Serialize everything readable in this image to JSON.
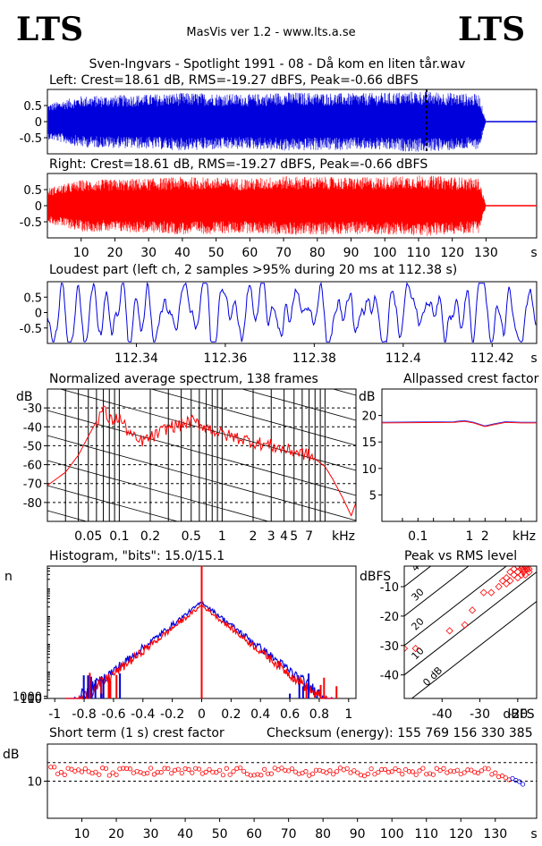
{
  "header": {
    "logo_left": "LTS",
    "logo_right": "LTS",
    "app_title": "MasVis ver 1.2 - www.lts.a.se",
    "file_title": "Sven-Ingvars - Spotlight 1991 - 08 - Då kom en liten tår.wav"
  },
  "colors": {
    "left": "#0000dd",
    "right": "#ff0000",
    "grid": "#000000"
  },
  "chart_data": [
    {
      "id": "left",
      "type": "area",
      "title": "Left: Crest=18.61 dB, RMS=-19.27 dBFS, Peak=-0.66 dBFS",
      "xlabel": "s",
      "xlim": [
        0,
        145
      ],
      "ylim": [
        -1,
        1
      ],
      "yticks": [
        "0.5",
        "0",
        "-0.5"
      ],
      "envelope_x": [
        0,
        10,
        20,
        30,
        40,
        50,
        60,
        70,
        80,
        90,
        100,
        110,
        120,
        128,
        130,
        145
      ],
      "envelope_amp": [
        0.55,
        0.8,
        0.82,
        0.85,
        0.9,
        0.88,
        0.85,
        0.92,
        0.9,
        0.88,
        0.9,
        0.95,
        0.9,
        0.85,
        0.0,
        0.0
      ],
      "marker_s": 112.38
    },
    {
      "id": "right",
      "type": "area",
      "title": "Right: Crest=18.61 dB, RMS=-19.27 dBFS, Peak=-0.66 dBFS",
      "xlabel": "s",
      "xlim": [
        0,
        145
      ],
      "ylim": [
        -1,
        1
      ],
      "yticks": [
        "0.5",
        "0",
        "-0.5"
      ],
      "xticks": [
        "10",
        "20",
        "30",
        "40",
        "50",
        "60",
        "70",
        "80",
        "90",
        "100",
        "110",
        "120",
        "130"
      ],
      "envelope_x": [
        0,
        10,
        20,
        30,
        40,
        50,
        60,
        70,
        80,
        90,
        100,
        110,
        120,
        128,
        130,
        145
      ],
      "envelope_amp": [
        0.55,
        0.8,
        0.82,
        0.85,
        0.9,
        0.88,
        0.85,
        0.92,
        0.9,
        0.88,
        0.9,
        0.95,
        0.9,
        0.85,
        0.0,
        0.0
      ]
    },
    {
      "id": "loudest",
      "type": "line",
      "title": "Loudest part (left  ch, 2 samples >95% during 20 ms at 112.38 s)",
      "xlabel": "s",
      "xlim": [
        112.32,
        112.43
      ],
      "ylim": [
        -1,
        1
      ],
      "yticks": [
        "0.5",
        "0",
        "-0.5"
      ],
      "xticks": [
        "112.34",
        "112.36",
        "112.38",
        "112.4",
        "112.42"
      ]
    },
    {
      "id": "spectrum",
      "type": "line",
      "title": "Normalized average spectrum, 138 frames",
      "ylabel": "dB",
      "xlabel": "kHz",
      "xscale": "log",
      "xlim": [
        0.02,
        20
      ],
      "ylim": [
        -90,
        -20
      ],
      "yticks": [
        "-30",
        "-40",
        "-50",
        "-60",
        "-70",
        "-80"
      ],
      "xticks": [
        "0.05",
        "0.1",
        "0.2",
        "0.5",
        "1",
        "2",
        "3",
        "4",
        "5",
        "7"
      ],
      "x": [
        0.02,
        0.03,
        0.04,
        0.05,
        0.06,
        0.07,
        0.08,
        0.1,
        0.12,
        0.15,
        0.2,
        0.25,
        0.3,
        0.4,
        0.5,
        0.7,
        1,
        1.5,
        2,
        3,
        4,
        5,
        6,
        7,
        8,
        10,
        12,
        15,
        18,
        20
      ],
      "y": [
        -71,
        -64,
        -55,
        -45,
        -37,
        -30,
        -37,
        -35,
        -42,
        -48,
        -46,
        -43,
        -40,
        -39,
        -37,
        -40,
        -44,
        -46,
        -48,
        -50,
        -52,
        -53,
        -54,
        -55,
        -57,
        -61,
        -68,
        -78,
        -87,
        -80
      ]
    },
    {
      "id": "allpassed",
      "type": "line",
      "title": "Allpassed crest factor",
      "ylabel": "dB",
      "xlabel": "kHz",
      "xscale": "log",
      "xlim": [
        0.02,
        20
      ],
      "ylim": [
        0,
        25
      ],
      "yticks": [
        "5",
        "10",
        "15",
        "20"
      ],
      "xticks": [
        "0.1",
        "1",
        "2",
        "kHz"
      ],
      "x": [
        0.02,
        0.5,
        0.8,
        1.2,
        2,
        3,
        5,
        10,
        20
      ],
      "y": [
        18.6,
        18.7,
        18.9,
        18.6,
        17.9,
        18.3,
        18.7,
        18.6,
        18.6
      ]
    },
    {
      "id": "histogram",
      "type": "bar",
      "title": "Histogram, \"bits\": 15.0/15.1",
      "ylabel": "n",
      "yscale": "log",
      "xlim": [
        -1.05,
        1.05
      ],
      "ylim": [
        1,
        60000
      ],
      "yticks": [
        "1000",
        "100",
        "10"
      ],
      "xticks": [
        "-1",
        "-0.8",
        "-0.6",
        "-0.4",
        "-0.2",
        "0",
        "0.2",
        "0.4",
        "0.6",
        "0.8",
        "1"
      ],
      "peak_count_left": 3000,
      "peak_count_right": 2300
    },
    {
      "id": "peak_rms",
      "type": "scatter",
      "title": "Peak vs RMS level",
      "ylabel": "dBFS",
      "xlabel": "dBFS",
      "xlim": [
        -50,
        -15
      ],
      "ylim": [
        -48,
        -3
      ],
      "yticks": [
        "-10",
        "-20",
        "-30",
        "-40"
      ],
      "xticks": [
        "-40",
        "-30",
        "-20"
      ],
      "diagonals": [
        "40",
        "30",
        "20",
        "10",
        "0 dB"
      ],
      "points_rms": [
        -50,
        -47,
        -38,
        -34,
        -32,
        -29,
        -27,
        -25,
        -24,
        -23,
        -23,
        -22,
        -22,
        -21,
        -21,
        -20,
        -20,
        -20,
        -19,
        -19,
        -19,
        -18.5,
        -18.5,
        -18,
        -18,
        -18,
        -17.5,
        -17.5,
        -17,
        -17,
        -17
      ],
      "points_peak": [
        -31,
        -31,
        -25,
        -23,
        -18,
        -12,
        -12,
        -10,
        -8,
        -9,
        -7,
        -8,
        -5,
        -6,
        -4,
        -7,
        -5,
        -3,
        -6,
        -4,
        -3,
        -5,
        -4,
        -3,
        -6,
        -2,
        -4,
        -3,
        -2,
        -4,
        -5
      ]
    },
    {
      "id": "short_crest",
      "type": "scatter",
      "title": "Short term (1 s) crest factor",
      "ylabel": "dB",
      "xlabel": "s",
      "xlim": [
        0,
        142
      ],
      "ylim": [
        0,
        20
      ],
      "yticks": [
        "10"
      ],
      "xticks": [
        "10",
        "20",
        "30",
        "40",
        "50",
        "60",
        "70",
        "80",
        "90",
        "100",
        "110",
        "120",
        "130"
      ],
      "dashed_levels": [
        10,
        15
      ]
    }
  ],
  "checksum": "Checksum (energy):   155 769 156 330 385"
}
